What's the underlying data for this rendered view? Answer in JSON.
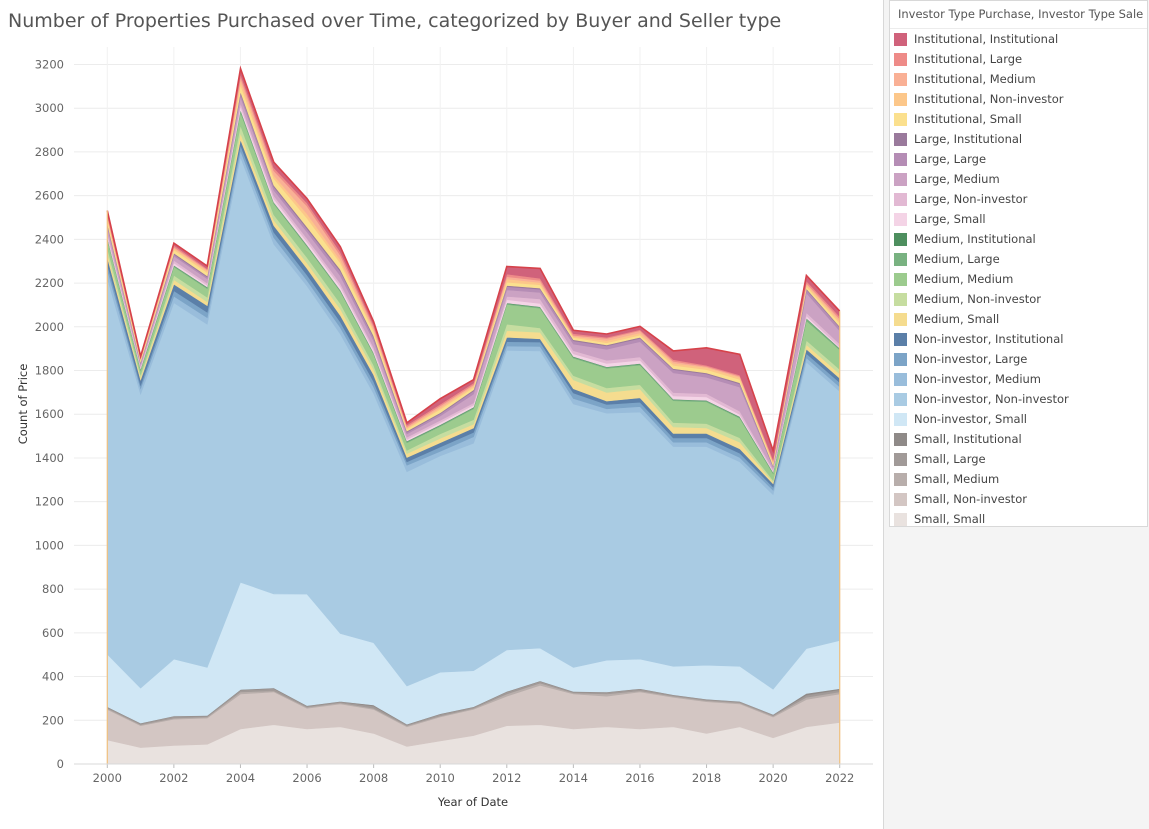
{
  "chart_data": {
    "type": "area",
    "stacked": true,
    "title": "Number of Properties Purchased over Time, categorized by  Buyer and Seller type",
    "xlabel": "Year of Date",
    "ylabel": "Count of Price",
    "x": [
      2000,
      2001,
      2002,
      2003,
      2004,
      2005,
      2006,
      2007,
      2008,
      2009,
      2010,
      2011,
      2012,
      2013,
      2014,
      2015,
      2016,
      2017,
      2018,
      2019,
      2020,
      2021,
      2022
    ],
    "x_ticks": [
      "2000",
      "2002",
      "2004",
      "2006",
      "2008",
      "2010",
      "2012",
      "2014",
      "2016",
      "2018",
      "2020",
      "2022"
    ],
    "y_ticks": [
      "0",
      "200",
      "400",
      "600",
      "800",
      "1000",
      "1200",
      "1400",
      "1600",
      "1800",
      "2000",
      "2200",
      "2400",
      "2600",
      "2800",
      "3000",
      "3200"
    ],
    "ylim": [
      0,
      3280
    ],
    "xlim": [
      1999.0,
      2023.0
    ],
    "grid": true,
    "legend_title": "Investor Type Purchase, Investor Type Sale",
    "legend_position": "right",
    "series": [
      {
        "name": "Small, Small",
        "color": "#e9e2df",
        "values": [
          110,
          75,
          85,
          90,
          160,
          180,
          160,
          170,
          140,
          80,
          105,
          130,
          175,
          180,
          160,
          170,
          160,
          170,
          140,
          170,
          120,
          170,
          190
        ]
      },
      {
        "name": "Small, Non-investor",
        "color": "#d3c6c3",
        "values": [
          140,
          100,
          120,
          120,
          160,
          150,
          95,
          105,
          110,
          90,
          110,
          120,
          135,
          180,
          160,
          140,
          170,
          135,
          145,
          105,
          95,
          125,
          130
        ]
      },
      {
        "name": "Small, Medium",
        "color": "#b8aeab",
        "values": [
          5,
          5,
          5,
          5,
          10,
          5,
          5,
          5,
          5,
          5,
          5,
          5,
          10,
          10,
          5,
          10,
          5,
          5,
          5,
          5,
          5,
          10,
          10
        ]
      },
      {
        "name": "Small, Large",
        "color": "#a19a98",
        "values": [
          5,
          5,
          8,
          5,
          8,
          10,
          5,
          5,
          10,
          5,
          8,
          5,
          10,
          8,
          5,
          8,
          8,
          5,
          5,
          5,
          5,
          10,
          10
        ]
      },
      {
        "name": "Small, Institutional",
        "color": "#8f8a88",
        "values": [
          2,
          2,
          2,
          2,
          3,
          3,
          2,
          2,
          5,
          2,
          2,
          2,
          2,
          2,
          2,
          2,
          2,
          2,
          2,
          2,
          2,
          8,
          5
        ]
      },
      {
        "name": "Non-investor, Small",
        "color": "#d0e7f5",
        "values": [
          240,
          160,
          260,
          220,
          490,
          430,
          510,
          310,
          285,
          175,
          190,
          165,
          190,
          150,
          110,
          145,
          135,
          130,
          155,
          160,
          115,
          205,
          220
        ]
      },
      {
        "name": "Non-investor, Non-investor",
        "color": "#a9cbe3",
        "values": [
          1720,
          1345,
          1630,
          1570,
          1945,
          1600,
          1410,
          1370,
          1140,
          980,
          990,
          1040,
          1370,
          1360,
          1205,
          1130,
          1130,
          1005,
          1000,
          935,
          890,
          1310,
          1140
        ]
      },
      {
        "name": "Non-investor, Medium",
        "color": "#99bddb",
        "values": [
          40,
          25,
          30,
          30,
          30,
          30,
          25,
          30,
          30,
          30,
          20,
          30,
          20,
          20,
          25,
          20,
          25,
          20,
          20,
          20,
          20,
          20,
          20
        ]
      },
      {
        "name": "Non-investor, Large",
        "color": "#7ca4c7",
        "values": [
          25,
          15,
          25,
          25,
          25,
          25,
          25,
          25,
          25,
          15,
          20,
          20,
          20,
          20,
          25,
          20,
          20,
          20,
          20,
          20,
          15,
          20,
          20
        ]
      },
      {
        "name": "Non-investor, Institutional",
        "color": "#5b7fa8",
        "values": [
          30,
          25,
          30,
          30,
          25,
          30,
          30,
          30,
          30,
          20,
          20,
          20,
          20,
          15,
          20,
          15,
          20,
          20,
          20,
          20,
          15,
          20,
          20
        ]
      },
      {
        "name": "Medium, Small",
        "color": "#f5dc8f",
        "values": [
          20,
          12,
          20,
          18,
          30,
          25,
          25,
          30,
          25,
          18,
          20,
          18,
          30,
          30,
          40,
          40,
          40,
          30,
          25,
          30,
          8,
          20,
          20
        ]
      },
      {
        "name": "Medium, Non-investor",
        "color": "#c6dda0",
        "values": [
          25,
          12,
          20,
          20,
          35,
          25,
          25,
          25,
          20,
          15,
          20,
          20,
          30,
          20,
          20,
          20,
          20,
          20,
          20,
          20,
          8,
          20,
          20
        ]
      },
      {
        "name": "Medium, Medium",
        "color": "#9ccb8e",
        "values": [
          40,
          20,
          40,
          40,
          60,
          50,
          50,
          55,
          50,
          35,
          35,
          50,
          90,
          90,
          80,
          90,
          90,
          100,
          100,
          90,
          30,
          90,
          90
        ]
      },
      {
        "name": "Medium, Large",
        "color": "#79b281",
        "values": [
          5,
          5,
          5,
          5,
          10,
          5,
          5,
          5,
          5,
          5,
          5,
          5,
          5,
          5,
          5,
          5,
          5,
          5,
          5,
          5,
          5,
          10,
          5
        ]
      },
      {
        "name": "Medium, Institutional",
        "color": "#4e8f5f",
        "values": [
          2,
          2,
          2,
          2,
          2,
          2,
          2,
          2,
          2,
          2,
          2,
          2,
          2,
          2,
          2,
          2,
          2,
          2,
          2,
          2,
          2,
          2,
          2
        ]
      },
      {
        "name": "Large, Small",
        "color": "#f4d4e6",
        "values": [
          10,
          5,
          10,
          8,
          15,
          15,
          15,
          15,
          12,
          8,
          10,
          10,
          15,
          15,
          12,
          15,
          15,
          15,
          15,
          10,
          5,
          10,
          5
        ]
      },
      {
        "name": "Large, Non-investor",
        "color": "#e2b9d3",
        "values": [
          15,
          8,
          12,
          10,
          15,
          15,
          15,
          15,
          12,
          10,
          10,
          10,
          15,
          20,
          15,
          15,
          15,
          15,
          15,
          15,
          8,
          15,
          15
        ]
      },
      {
        "name": "Large, Medium",
        "color": "#cba2c3",
        "values": [
          25,
          10,
          20,
          20,
          30,
          25,
          30,
          35,
          30,
          15,
          20,
          40,
          30,
          30,
          30,
          50,
          70,
          90,
          75,
          110,
          10,
          90,
          60
        ]
      },
      {
        "name": "Large, Large",
        "color": "#b58db5",
        "values": [
          10,
          5,
          8,
          8,
          15,
          15,
          15,
          20,
          15,
          8,
          10,
          15,
          15,
          15,
          15,
          15,
          15,
          15,
          15,
          15,
          5,
          15,
          15
        ]
      },
      {
        "name": "Large, Institutional",
        "color": "#9a7a9c",
        "values": [
          5,
          3,
          5,
          5,
          8,
          8,
          8,
          8,
          8,
          5,
          5,
          5,
          5,
          5,
          5,
          5,
          5,
          5,
          5,
          5,
          3,
          5,
          5
        ]
      },
      {
        "name": "Institutional, Small",
        "color": "#fbe08e",
        "values": [
          20,
          8,
          15,
          15,
          30,
          30,
          40,
          30,
          20,
          10,
          15,
          10,
          15,
          15,
          10,
          10,
          10,
          15,
          15,
          15,
          10,
          10,
          15
        ]
      },
      {
        "name": "Institutional, Non-investor",
        "color": "#fcc78a",
        "values": [
          10,
          5,
          8,
          8,
          20,
          15,
          20,
          15,
          10,
          5,
          8,
          8,
          15,
          10,
          5,
          10,
          10,
          10,
          10,
          10,
          5,
          10,
          10
        ]
      },
      {
        "name": "Institutional, Medium",
        "color": "#f9b095",
        "values": [
          5,
          3,
          5,
          5,
          15,
          20,
          35,
          20,
          10,
          5,
          8,
          5,
          10,
          10,
          5,
          10,
          10,
          8,
          5,
          5,
          5,
          5,
          10
        ]
      },
      {
        "name": "Institutional, Large",
        "color": "#ee8b88",
        "values": [
          8,
          5,
          8,
          5,
          15,
          15,
          15,
          15,
          10,
          8,
          8,
          8,
          12,
          10,
          8,
          5,
          5,
          8,
          5,
          5,
          8,
          10,
          10
        ]
      },
      {
        "name": "Institutional, Institutional",
        "color": "#d0627b",
        "values": [
          15,
          5,
          10,
          12,
          25,
          25,
          20,
          25,
          15,
          10,
          25,
          15,
          35,
          45,
          15,
          15,
          15,
          40,
          80,
          95,
          40,
          25,
          25
        ]
      }
    ],
    "boundary_line_color": "#f0c07e",
    "top_line_color": "#d6424a"
  }
}
